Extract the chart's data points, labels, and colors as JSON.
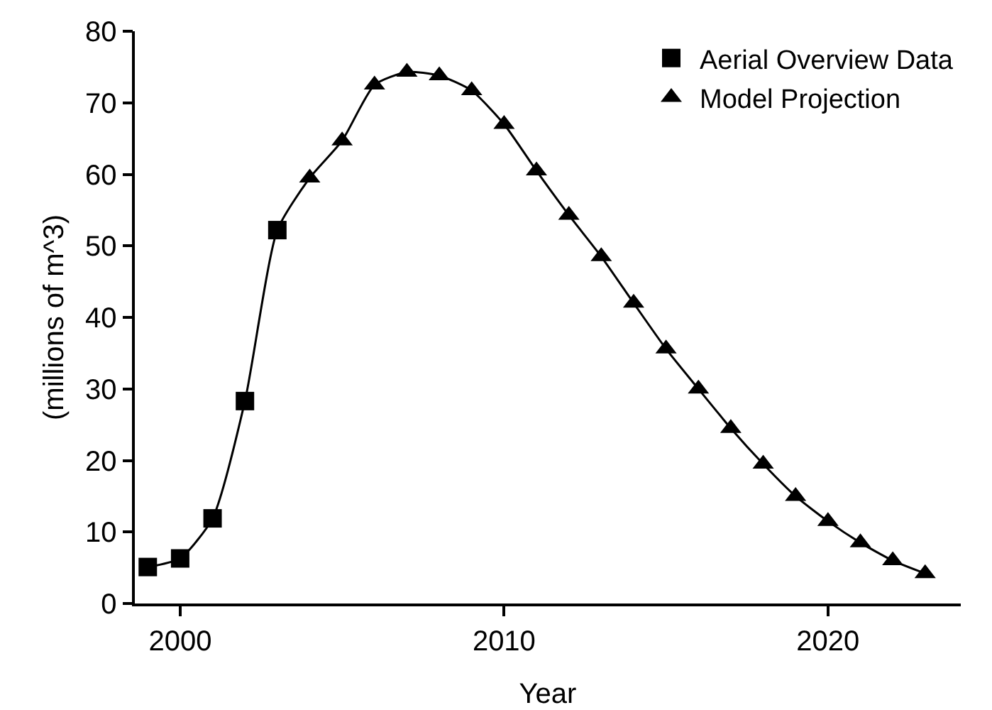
{
  "chart_data": {
    "type": "scatter",
    "xlabel": "Year",
    "ylabel": "(millions of m^3)",
    "xlim": [
      1998.6,
      2024.1
    ],
    "xticks": [
      2000,
      2010,
      2020
    ],
    "ylim": [
      0,
      80
    ],
    "yticks": [
      0,
      10,
      20,
      30,
      40,
      50,
      60,
      70,
      80
    ],
    "grid": false,
    "legend": "top right",
    "series": [
      {
        "type": "line",
        "marker": "none",
        "line_style": "solid",
        "color": "#000000",
        "x": [
          1999,
          2000,
          2001,
          2002,
          2003,
          2004,
          2005,
          2006,
          2007,
          2008,
          2009,
          2010,
          2011,
          2012,
          2013,
          2014,
          2015,
          2016,
          2017,
          2018,
          2019,
          2020,
          2021,
          2022,
          2023
        ],
        "values": [
          5.1,
          6.3,
          11.9,
          28.3,
          52.2,
          59.5,
          64.7,
          72.5,
          74.3,
          73.8,
          71.7,
          67,
          60.5,
          54.3,
          48.5,
          42,
          35.6,
          30,
          24.5,
          19.5,
          15,
          11.5,
          8.5,
          6,
          4.2
        ]
      },
      {
        "name": "Aerial Overview Data",
        "marker": "square",
        "color": "#000000",
        "x": [
          1999,
          2000,
          2001,
          2002,
          2003
        ],
        "values": [
          5.1,
          6.3,
          11.9,
          28.3,
          52.2
        ]
      },
      {
        "name": "Model Projection",
        "marker": "triangle",
        "color": "#000000",
        "x": [
          2004,
          2005,
          2006,
          2007,
          2008,
          2009,
          2010,
          2011,
          2012,
          2013,
          2014,
          2015,
          2016,
          2017,
          2018,
          2019,
          2020,
          2021,
          2022,
          2023
        ],
        "values": [
          59.5,
          64.7,
          72.5,
          74.3,
          73.8,
          71.7,
          67,
          60.5,
          54.3,
          48.5,
          42,
          35.6,
          30,
          24.5,
          19.5,
          15,
          11.5,
          8.5,
          6,
          4.2
        ]
      }
    ]
  }
}
